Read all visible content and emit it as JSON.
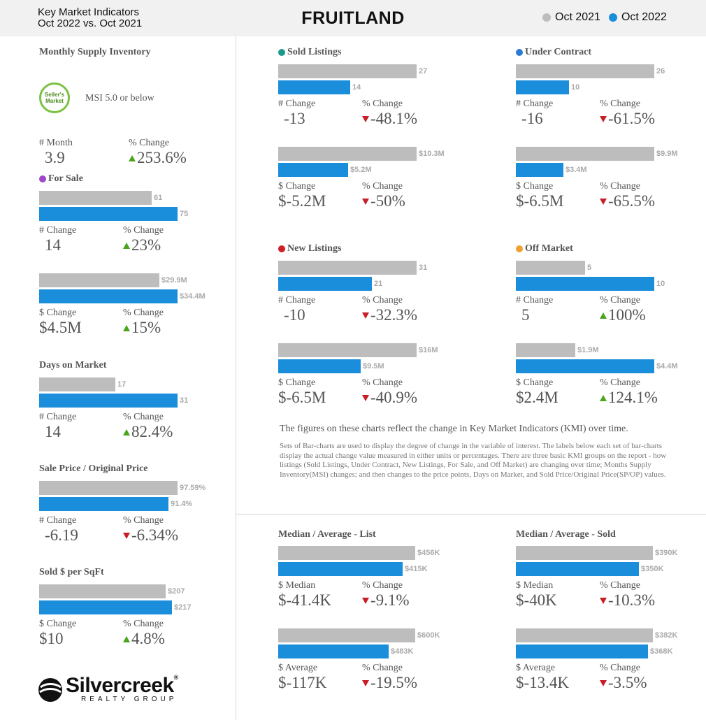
{
  "header": {
    "subtitle_line1": "Key Market Indicators",
    "subtitle_line2": "Oct 2022 vs. Oct 2021",
    "title": "FRUITLAND",
    "legend": [
      {
        "label": "Oct 2021",
        "color": "#bdbdbd"
      },
      {
        "label": "Oct 2022",
        "color": "#1a8ddb"
      }
    ]
  },
  "msi": {
    "title": "Monthly Supply Inventory",
    "badge_text_1": "Seller's",
    "badge_text_2": "Market",
    "badge_caption": "MSI 5.0 or below",
    "stat1_label": "# Month",
    "stat1_value": "3.9",
    "stat2_label": "% Change",
    "stat2_value": "253.6%",
    "stat2_dir": "up"
  },
  "chart_data": [
    {
      "type": "bar",
      "id": "for-sale-count",
      "title": "For Sale",
      "title_dot": "#a048c8",
      "categories": [
        "Oct 2021",
        "Oct 2022"
      ],
      "values": [
        61,
        75
      ],
      "labels": [
        "61",
        "75"
      ],
      "stat1_label": "# Change",
      "stat1_value": "14",
      "stat2_label": "% Change",
      "stat2_value": "23%",
      "stat2_dir": "up"
    },
    {
      "type": "bar",
      "id": "for-sale-volume",
      "title": "",
      "categories": [
        "Oct 2021",
        "Oct 2022"
      ],
      "values": [
        29.9,
        34.4
      ],
      "labels": [
        "$29.9M",
        "$34.4M"
      ],
      "stat1_label": "$ Change",
      "stat1_value": "$4.5M",
      "stat2_label": "% Change",
      "stat2_value": "15%",
      "stat2_dir": "up"
    },
    {
      "type": "bar",
      "id": "days-on-market",
      "title": "Days on Market",
      "categories": [
        "Oct 2021",
        "Oct 2022"
      ],
      "values": [
        17,
        31
      ],
      "labels": [
        "17",
        "31"
      ],
      "stat1_label": "# Change",
      "stat1_value": "14",
      "stat2_label": "% Change",
      "stat2_value": "82.4%",
      "stat2_dir": "up"
    },
    {
      "type": "bar",
      "id": "sale-price-ratio",
      "title": "Sale Price / Original Price",
      "categories": [
        "Oct 2021",
        "Oct 2022"
      ],
      "values": [
        97.59,
        91.4
      ],
      "labels": [
        "97.59%",
        "91.4%"
      ],
      "stat1_label": "# Change",
      "stat1_value": "-6.19",
      "stat2_label": "% Change",
      "stat2_value": "-6.34%",
      "stat2_dir": "down"
    },
    {
      "type": "bar",
      "id": "sold-per-sqft",
      "title": "Sold $ per SqFt",
      "categories": [
        "Oct 2021",
        "Oct 2022"
      ],
      "values": [
        207,
        217
      ],
      "labels": [
        "$207",
        "$217"
      ],
      "stat1_label": "$ Change",
      "stat1_value": "$10",
      "stat2_label": "% Change",
      "stat2_value": "4.8%",
      "stat2_dir": "up"
    },
    {
      "type": "bar",
      "id": "sold-listings-count",
      "title": "Sold Listings",
      "title_dot": "#1a9a8a",
      "categories": [
        "Oct 2021",
        "Oct 2022"
      ],
      "values": [
        27,
        14
      ],
      "labels": [
        "27",
        "14"
      ],
      "stat1_label": "# Change",
      "stat1_value": "-13",
      "stat2_label": "% Change",
      "stat2_value": "-48.1%",
      "stat2_dir": "down"
    },
    {
      "type": "bar",
      "id": "sold-listings-volume",
      "title": "",
      "categories": [
        "Oct 2021",
        "Oct 2022"
      ],
      "values": [
        10.3,
        5.2
      ],
      "labels": [
        "$10.3M",
        "$5.2M"
      ],
      "stat1_label": "$ Change",
      "stat1_value": "$-5.2M",
      "stat2_label": "% Change",
      "stat2_value": "-50%",
      "stat2_dir": "down"
    },
    {
      "type": "bar",
      "id": "under-contract-count",
      "title": "Under Contract",
      "title_dot": "#2a7ad6",
      "categories": [
        "Oct 2021",
        "Oct 2022"
      ],
      "values": [
        26,
        10
      ],
      "labels": [
        "26",
        "10"
      ],
      "stat1_label": "# Change",
      "stat1_value": "-16",
      "stat2_label": "% Change",
      "stat2_value": "-61.5%",
      "stat2_dir": "down"
    },
    {
      "type": "bar",
      "id": "under-contract-volume",
      "title": "",
      "categories": [
        "Oct 2021",
        "Oct 2022"
      ],
      "values": [
        9.9,
        3.4
      ],
      "labels": [
        "$9.9M",
        "$3.4M"
      ],
      "stat1_label": "$ Change",
      "stat1_value": "$-6.5M",
      "stat2_label": "% Change",
      "stat2_value": "-65.5%",
      "stat2_dir": "down"
    },
    {
      "type": "bar",
      "id": "new-listings-count",
      "title": "New Listings",
      "title_dot": "#d01e28",
      "categories": [
        "Oct 2021",
        "Oct 2022"
      ],
      "values": [
        31,
        21
      ],
      "labels": [
        "31",
        "21"
      ],
      "stat1_label": "# Change",
      "stat1_value": "-10",
      "stat2_label": "% Change",
      "stat2_value": "-32.3%",
      "stat2_dir": "down"
    },
    {
      "type": "bar",
      "id": "new-listings-volume",
      "title": "",
      "categories": [
        "Oct 2021",
        "Oct 2022"
      ],
      "values": [
        16,
        9.5
      ],
      "labels": [
        "$16M",
        "$9.5M"
      ],
      "stat1_label": "$ Change",
      "stat1_value": "$-6.5M",
      "stat2_label": "% Change",
      "stat2_value": "-40.9%",
      "stat2_dir": "down"
    },
    {
      "type": "bar",
      "id": "off-market-count",
      "title": "Off Market",
      "title_dot": "#f0a030",
      "categories": [
        "Oct 2021",
        "Oct 2022"
      ],
      "values": [
        5,
        10
      ],
      "labels": [
        "5",
        "10"
      ],
      "stat1_label": "# Change",
      "stat1_value": "5",
      "stat2_label": "% Change",
      "stat2_value": "100%",
      "stat2_dir": "up"
    },
    {
      "type": "bar",
      "id": "off-market-volume",
      "title": "",
      "categories": [
        "Oct 2021",
        "Oct 2022"
      ],
      "values": [
        1.9,
        4.4
      ],
      "labels": [
        "$1.9M",
        "$4.4M"
      ],
      "stat1_label": "$ Change",
      "stat1_value": "$2.4M",
      "stat2_label": "% Change",
      "stat2_value": "124.1%",
      "stat2_dir": "up"
    },
    {
      "type": "bar",
      "id": "list-median",
      "title": "Median / Average - List",
      "categories": [
        "Oct 2021",
        "Oct 2022"
      ],
      "values": [
        456,
        415
      ],
      "labels": [
        "$456K",
        "$415K"
      ],
      "stat1_label": "$ Median",
      "stat1_value": "$-41.4K",
      "stat2_label": "% Change",
      "stat2_value": "-9.1%",
      "stat2_dir": "down"
    },
    {
      "type": "bar",
      "id": "list-average",
      "title": "",
      "categories": [
        "Oct 2021",
        "Oct 2022"
      ],
      "values": [
        600,
        483
      ],
      "labels": [
        "$600K",
        "$483K"
      ],
      "stat1_label": "$ Average",
      "stat1_value": "$-117K",
      "stat2_label": "% Change",
      "stat2_value": "-19.5%",
      "stat2_dir": "down"
    },
    {
      "type": "bar",
      "id": "sold-median",
      "title": "Median / Average - Sold",
      "categories": [
        "Oct 2021",
        "Oct 2022"
      ],
      "values": [
        390,
        350
      ],
      "labels": [
        "$390K",
        "$350K"
      ],
      "stat1_label": "$ Median",
      "stat1_value": "$-40K",
      "stat2_label": "% Change",
      "stat2_value": "-10.3%",
      "stat2_dir": "down"
    },
    {
      "type": "bar",
      "id": "sold-average",
      "title": "",
      "categories": [
        "Oct 2021",
        "Oct 2022"
      ],
      "values": [
        382,
        368
      ],
      "labels": [
        "$382K",
        "$368K"
      ],
      "stat1_label": "$ Average",
      "stat1_value": "$-13.4K",
      "stat2_label": "% Change",
      "stat2_value": "-3.5%",
      "stat2_dir": "down"
    }
  ],
  "notes": {
    "line1": "The figures on these charts reflect the change in Key Market Indicators (KMI) over time.",
    "line2": "Sets of Bar-charts are used to display the degree of change in the variable of interest. The labels below each set of bar-charts display the actual change value measured in either units or percentages. There are three basic KMI groups on the report - how listings (Sold Listings, Under Contract, New Listings, For Sale, and Off Market) are changing over time; Months Supply Inventory(MSI) changes; and then changes to the price points, Days on Market, and Sold Price/Original Price(SP/OP) values."
  },
  "logo": {
    "word": "Silvercreek",
    "sub": "REALTY GROUP",
    "mark": "®"
  }
}
